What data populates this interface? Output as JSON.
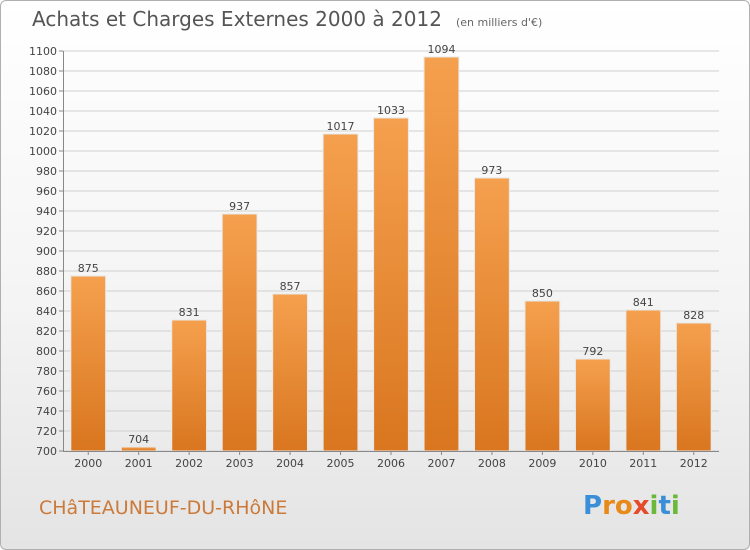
{
  "header": {
    "title": "Achats et Charges Externes 2000 à 2012",
    "unit": "(en milliers d'€)"
  },
  "location": "CHâTEAUNEUF-DU-RHôNE",
  "brand": {
    "letters": [
      "P",
      "r",
      "o",
      "x",
      "i",
      "t",
      "i"
    ],
    "colors": [
      "#3a8fd8",
      "#e88a1a",
      "#e88a1a",
      "#e54a2a",
      "#6bb83a",
      "#3a8fd8",
      "#6bb83a"
    ]
  },
  "chart_data": {
    "type": "bar",
    "categories": [
      "2000",
      "2001",
      "2002",
      "2003",
      "2004",
      "2005",
      "2006",
      "2007",
      "2008",
      "2009",
      "2010",
      "2011",
      "2012"
    ],
    "values": [
      875,
      704,
      831,
      937,
      857,
      1017,
      1033,
      1094,
      973,
      850,
      792,
      841,
      828
    ],
    "data_labels": [
      "875",
      "704",
      "831",
      "937",
      "857",
      "1017",
      "1033",
      "1094",
      "973",
      "850",
      "792",
      "841",
      "828"
    ],
    "ylim": [
      700,
      1100
    ],
    "yticks": [
      700,
      720,
      740,
      760,
      780,
      800,
      820,
      840,
      860,
      880,
      900,
      920,
      940,
      960,
      980,
      1000,
      1020,
      1040,
      1060,
      1080,
      1100
    ],
    "grid": true,
    "bar_color_top": "#f5a04e",
    "bar_color_bottom": "#d9761f"
  }
}
